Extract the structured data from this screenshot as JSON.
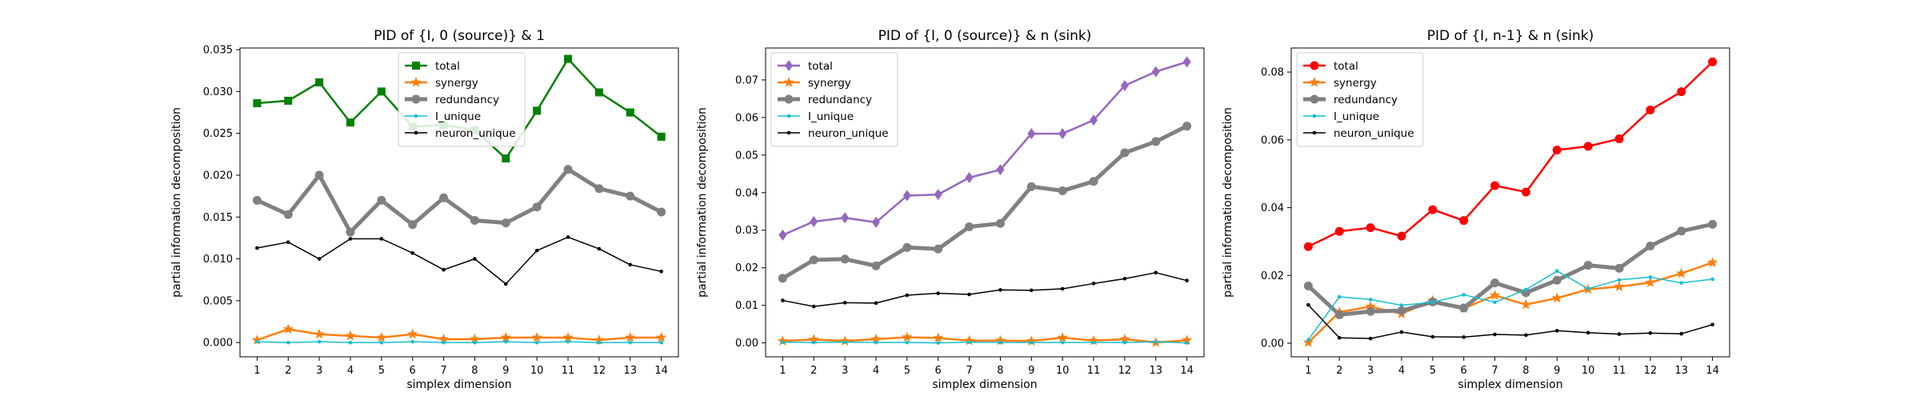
{
  "figure": {
    "background": "#ffffff"
  },
  "chart_data": [
    {
      "type": "line",
      "title": "PID of {I, 0 (source)} & 1",
      "xlabel": "simplex dimension",
      "ylabel": "partial information decomposition",
      "x": [
        1,
        2,
        3,
        4,
        5,
        6,
        7,
        8,
        9,
        10,
        11,
        12,
        13,
        14
      ],
      "xlim": [
        0.45,
        14.55
      ],
      "ylim": [
        -0.0017,
        0.0352
      ],
      "yticks": [
        0.0,
        0.005,
        0.01,
        0.015,
        0.02,
        0.025,
        0.03,
        0.035
      ],
      "ytick_labels": [
        "0.000",
        "0.005",
        "0.010",
        "0.015",
        "0.020",
        "0.025",
        "0.030",
        "0.035"
      ],
      "grid": false,
      "legend_placement": "top-center",
      "series": [
        {
          "name": "total",
          "color": "#008000",
          "marker": "square",
          "width": 2.5,
          "values": [
            0.0286,
            0.0289,
            0.0311,
            0.0263,
            0.03,
            0.0258,
            0.026,
            0.0254,
            0.022,
            0.0277,
            0.0339,
            0.0299,
            0.0275,
            0.0246
          ]
        },
        {
          "name": "synergy",
          "color": "#ff7f0e",
          "marker": "star",
          "width": 2.5,
          "values": [
            0.0003,
            0.0016,
            0.001,
            0.0008,
            0.0006,
            0.001,
            0.0004,
            0.0004,
            0.0006,
            0.0006,
            0.0006,
            0.0003,
            0.0006,
            0.0006
          ]
        },
        {
          "name": "redundancy",
          "color": "#808080",
          "marker": "circle",
          "width": 5,
          "values": [
            0.017,
            0.0153,
            0.02,
            0.0132,
            0.017,
            0.0141,
            0.0173,
            0.0146,
            0.0143,
            0.0162,
            0.0207,
            0.0184,
            0.0175,
            0.0156
          ]
        },
        {
          "name": "I_unique",
          "color": "#17becf",
          "marker": "dot",
          "width": 1.5,
          "values": [
            0.0001,
            0.0,
            0.0001,
            0.0,
            0.0,
            0.0001,
            0.0,
            0.0,
            0.0001,
            0.0,
            0.0001,
            0.0,
            0.0,
            0.0
          ]
        },
        {
          "name": "neuron_unique",
          "color": "#000000",
          "marker": "dot",
          "width": 1.5,
          "values": [
            0.0113,
            0.012,
            0.01,
            0.0124,
            0.0124,
            0.0107,
            0.0087,
            0.01,
            0.007,
            0.011,
            0.0126,
            0.0112,
            0.0093,
            0.0085
          ]
        }
      ]
    },
    {
      "type": "line",
      "title": "PID of {I, 0 (source)} & n (sink)",
      "xlabel": "simplex dimension",
      "ylabel": "partial information decomposition",
      "x": [
        1,
        2,
        3,
        4,
        5,
        6,
        7,
        8,
        9,
        10,
        11,
        12,
        13,
        14
      ],
      "xlim": [
        0.45,
        14.55
      ],
      "ylim": [
        -0.0037,
        0.0785
      ],
      "yticks": [
        0.0,
        0.01,
        0.02,
        0.03,
        0.04,
        0.05,
        0.06,
        0.07
      ],
      "ytick_labels": [
        "0.00",
        "0.01",
        "0.02",
        "0.03",
        "0.04",
        "0.05",
        "0.06",
        "0.07"
      ],
      "grid": false,
      "legend_placement": "upper-left",
      "series": [
        {
          "name": "total",
          "color": "#9467bd",
          "marker": "diamond",
          "width": 2.5,
          "values": [
            0.0287,
            0.0323,
            0.0333,
            0.0321,
            0.0392,
            0.0395,
            0.044,
            0.0461,
            0.0557,
            0.0557,
            0.0593,
            0.0685,
            0.0722,
            0.0748
          ]
        },
        {
          "name": "synergy",
          "color": "#ff7f0e",
          "marker": "star",
          "width": 2.5,
          "values": [
            0.0005,
            0.0009,
            0.0005,
            0.001,
            0.0015,
            0.0013,
            0.0006,
            0.0006,
            0.0005,
            0.0014,
            0.0006,
            0.001,
            0.0001,
            0.0007
          ]
        },
        {
          "name": "redundancy",
          "color": "#808080",
          "marker": "circle",
          "width": 5,
          "values": [
            0.0172,
            0.0221,
            0.0223,
            0.0205,
            0.0254,
            0.025,
            0.0309,
            0.0318,
            0.0416,
            0.0405,
            0.043,
            0.0506,
            0.0536,
            0.0577
          ]
        },
        {
          "name": "I_unique",
          "color": "#17becf",
          "marker": "dot",
          "width": 1.5,
          "values": [
            0.0002,
            0.0001,
            0.0002,
            0.0001,
            0.0001,
            0.0,
            0.0002,
            0.0001,
            0.0001,
            0.0001,
            0.0001,
            0.0001,
            0.0003,
            0.0
          ]
        },
        {
          "name": "neuron_unique",
          "color": "#000000",
          "marker": "dot",
          "width": 1.5,
          "values": [
            0.0113,
            0.0097,
            0.0107,
            0.0106,
            0.0127,
            0.0132,
            0.0129,
            0.0141,
            0.014,
            0.0144,
            0.0158,
            0.0171,
            0.0187,
            0.0166
          ]
        }
      ]
    },
    {
      "type": "line",
      "title": "PID of {I, n-1} & n (sink)",
      "xlabel": "simplex dimension",
      "ylabel": "partial information decomposition",
      "x": [
        1,
        2,
        3,
        4,
        5,
        6,
        7,
        8,
        9,
        10,
        11,
        12,
        13,
        14
      ],
      "xlim": [
        0.45,
        14.55
      ],
      "ylim": [
        -0.004,
        0.0871
      ],
      "yticks": [
        0.0,
        0.02,
        0.04,
        0.06,
        0.08
      ],
      "ytick_labels": [
        "0.00",
        "0.02",
        "0.04",
        "0.06",
        "0.08"
      ],
      "grid": false,
      "legend_placement": "upper-left",
      "series": [
        {
          "name": "total",
          "color": "#ff0000",
          "marker": "circle",
          "width": 2.5,
          "values": [
            0.0285,
            0.033,
            0.0341,
            0.0316,
            0.0394,
            0.0362,
            0.0465,
            0.0446,
            0.057,
            0.0581,
            0.0603,
            0.0688,
            0.0742,
            0.083
          ]
        },
        {
          "name": "synergy",
          "color": "#ff7f0e",
          "marker": "star",
          "width": 2.5,
          "values": [
            0.0002,
            0.0092,
            0.0108,
            0.0087,
            0.0126,
            0.0103,
            0.0141,
            0.0114,
            0.0133,
            0.0159,
            0.0167,
            0.0179,
            0.0206,
            0.0238
          ]
        },
        {
          "name": "redundancy",
          "color": "#808080",
          "marker": "circle",
          "width": 5,
          "values": [
            0.0169,
            0.0084,
            0.0094,
            0.0096,
            0.0122,
            0.0104,
            0.0178,
            0.0149,
            0.0186,
            0.023,
            0.0221,
            0.0287,
            0.0331,
            0.0351
          ]
        },
        {
          "name": "I_unique",
          "color": "#17becf",
          "marker": "dot",
          "width": 1.5,
          "values": [
            0.001,
            0.0137,
            0.0129,
            0.0112,
            0.0121,
            0.0143,
            0.0121,
            0.0158,
            0.0213,
            0.0161,
            0.0187,
            0.0195,
            0.0178,
            0.0189
          ]
        },
        {
          "name": "neuron_unique",
          "color": "#000000",
          "marker": "dot",
          "width": 1.5,
          "values": [
            0.0113,
            0.0016,
            0.0014,
            0.0033,
            0.0019,
            0.0018,
            0.0026,
            0.0024,
            0.0037,
            0.0031,
            0.0027,
            0.003,
            0.0028,
            0.0055
          ]
        }
      ]
    }
  ]
}
